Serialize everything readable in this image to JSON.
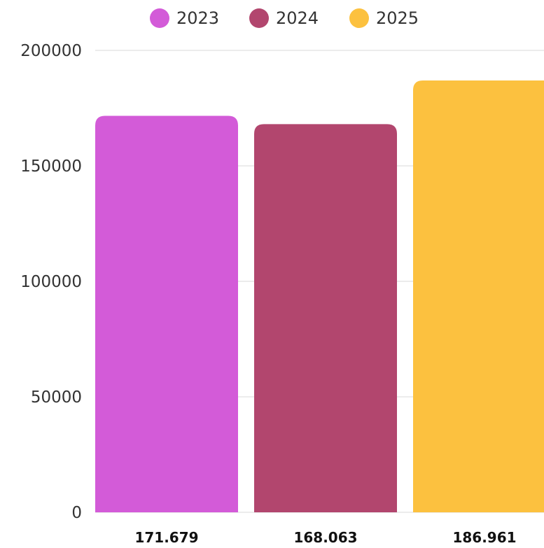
{
  "chart_data": {
    "type": "bar",
    "series": [
      {
        "name": "2023",
        "value": 171679,
        "value_label": "171.679",
        "color": "#D35BD8"
      },
      {
        "name": "2024",
        "value": 168063,
        "value_label": "168.063",
        "color": "#B2466E"
      },
      {
        "name": "2025",
        "value": 186961,
        "value_label": "186.961",
        "color": "#FCC13F"
      }
    ],
    "y_ticks": [
      "0",
      "50000",
      "100000",
      "150000",
      "200000"
    ],
    "ylim": [
      0,
      200000
    ],
    "grid": true,
    "legend_position": "top-center",
    "title": "",
    "xlabel": "",
    "ylabel": ""
  }
}
